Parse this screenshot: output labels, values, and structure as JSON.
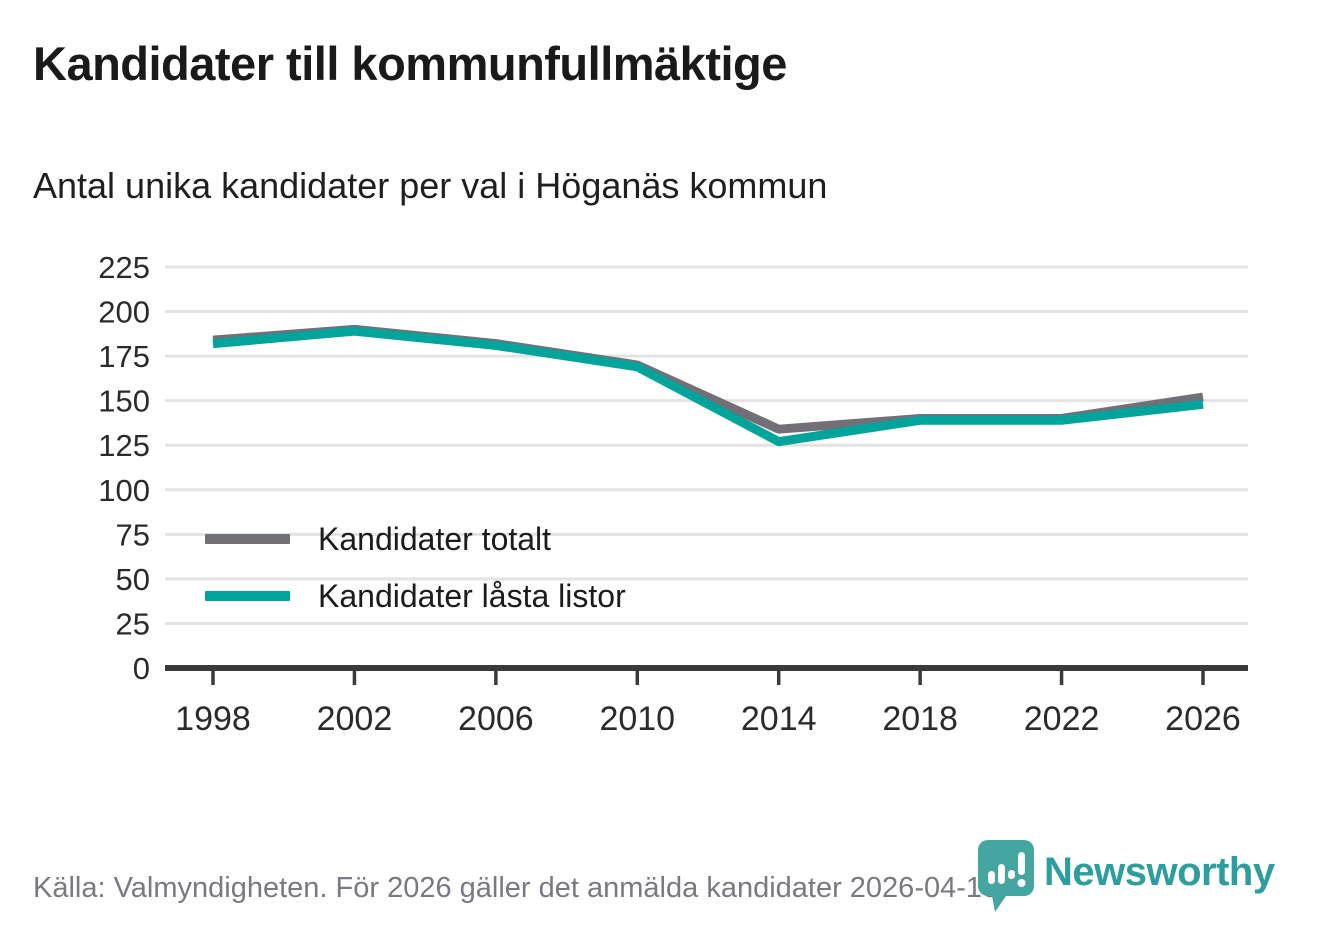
{
  "header": {
    "title": "Kandidater till kommunfullmäktige",
    "subtitle": "Antal unika kandidater per val i Höganäs kommun"
  },
  "chart_data": {
    "type": "line",
    "title": "Kandidater till kommunfullmäktige",
    "subtitle": "Antal unika kandidater per val i Höganäs kommun",
    "x": [
      1998,
      2002,
      2006,
      2010,
      2014,
      2018,
      2022,
      2026
    ],
    "series": [
      {
        "name": "Kandidater totalt",
        "color": "#727076",
        "values": [
          184,
          190,
          182,
          170,
          134,
          140,
          140,
          152
        ]
      },
      {
        "name": "Kandidater låsta listor",
        "color": "#00a49b",
        "values": [
          182,
          189,
          181,
          169,
          127,
          139,
          139,
          148
        ]
      }
    ],
    "ylim": [
      0,
      225
    ],
    "ytick_step": 25,
    "yticks": [
      0,
      25,
      50,
      75,
      100,
      125,
      150,
      175,
      200,
      225
    ],
    "grid": true,
    "legend_position": "inside-left",
    "colors": {
      "gridline": "#e3e3e3",
      "axis_line": "#3a3a3a",
      "tick_label": "#2b2b2b"
    }
  },
  "footer": {
    "source_text": "Källa: Valmyndigheten. För 2026 gäller det anmälda kandidater 2026-04-10.",
    "brand_name": "Newsworthy",
    "brand_color": "#2d9e9e",
    "brand_icon": "newsworthy-pin-barchart-icon",
    "brand_icon_color": "#45a5a0"
  }
}
